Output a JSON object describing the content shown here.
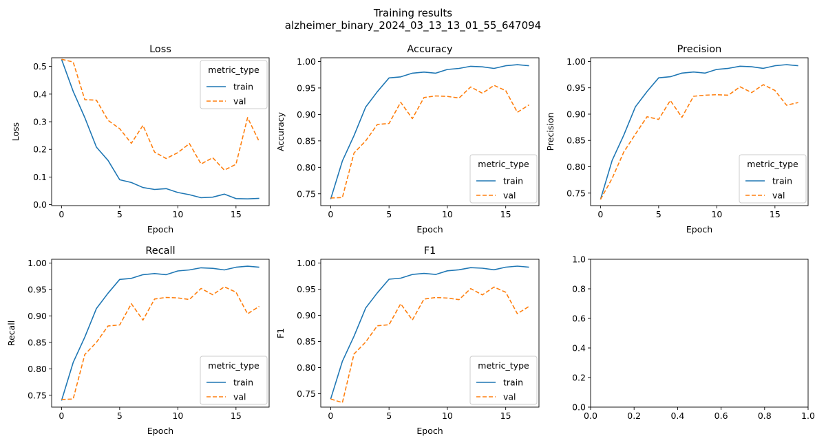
{
  "figure": {
    "title_line1": "Training results",
    "title_line2": "alzheimer_binary_2024_03_13_13_01_55_647094"
  },
  "colors": {
    "train": "#1f77b4",
    "val": "#ff7f0e",
    "axes": "#000000"
  },
  "chart_data": [
    {
      "type": "line",
      "title": "Loss",
      "xlabel": "Epoch",
      "ylabel": "Loss",
      "xlim": [
        -0.85,
        17.85
      ],
      "ylim": [
        -0.0035,
        0.5315
      ],
      "xticks": [
        0,
        5,
        10,
        15
      ],
      "yticks": [
        0.0,
        0.1,
        0.2,
        0.3,
        0.4,
        0.5
      ],
      "ytick_labels": [
        "0.0",
        "0.1",
        "0.2",
        "0.3",
        "0.4",
        "0.5"
      ],
      "legend": {
        "title": "metric_type",
        "placement": "upper right"
      },
      "x": [
        0,
        1,
        2,
        3,
        4,
        5,
        6,
        7,
        8,
        9,
        10,
        11,
        12,
        13,
        14,
        15,
        16,
        17
      ],
      "series": [
        {
          "name": "train",
          "values": [
            0.526,
            0.41,
            0.315,
            0.208,
            0.16,
            0.09,
            0.08,
            0.062,
            0.055,
            0.058,
            0.044,
            0.036,
            0.025,
            0.027,
            0.038,
            0.022,
            0.021,
            0.023
          ]
        },
        {
          "name": "val",
          "values": [
            0.526,
            0.516,
            0.38,
            0.378,
            0.305,
            0.275,
            0.222,
            0.287,
            0.19,
            0.167,
            0.188,
            0.221,
            0.147,
            0.17,
            0.125,
            0.146,
            0.315,
            0.228
          ]
        }
      ]
    },
    {
      "type": "line",
      "title": "Accuracy",
      "xlabel": "Epoch",
      "ylabel": "Accuracy",
      "xlim": [
        -0.85,
        17.85
      ],
      "ylim": [
        0.7276,
        1.0071
      ],
      "xticks": [
        0,
        5,
        10,
        15
      ],
      "yticks": [
        0.75,
        0.8,
        0.85,
        0.9,
        0.95,
        1.0
      ],
      "ytick_labels": [
        "0.75",
        "0.80",
        "0.85",
        "0.90",
        "0.95",
        "1.00"
      ],
      "legend": {
        "title": "metric_type",
        "placement": "lower right"
      },
      "x": [
        0,
        1,
        2,
        3,
        4,
        5,
        6,
        7,
        8,
        9,
        10,
        11,
        12,
        13,
        14,
        15,
        16,
        17
      ],
      "series": [
        {
          "name": "train",
          "values": [
            0.74,
            0.812,
            0.86,
            0.914,
            0.943,
            0.969,
            0.971,
            0.978,
            0.98,
            0.978,
            0.985,
            0.987,
            0.991,
            0.99,
            0.987,
            0.992,
            0.994,
            0.992
          ]
        },
        {
          "name": "val",
          "values": [
            0.742,
            0.743,
            0.827,
            0.85,
            0.881,
            0.883,
            0.923,
            0.892,
            0.932,
            0.935,
            0.934,
            0.931,
            0.952,
            0.94,
            0.955,
            0.945,
            0.904,
            0.918
          ]
        }
      ]
    },
    {
      "type": "line",
      "title": "Precision",
      "xlabel": "Epoch",
      "ylabel": "Precision",
      "xlim": [
        -0.85,
        17.85
      ],
      "ylim": [
        0.7262,
        1.0071
      ],
      "xticks": [
        0,
        5,
        10,
        15
      ],
      "yticks": [
        0.75,
        0.8,
        0.85,
        0.9,
        0.95,
        1.0
      ],
      "ytick_labels": [
        "0.75",
        "0.80",
        "0.85",
        "0.90",
        "0.95",
        "1.00"
      ],
      "legend": {
        "title": "metric_type",
        "placement": "lower right"
      },
      "x": [
        0,
        1,
        2,
        3,
        4,
        5,
        6,
        7,
        8,
        9,
        10,
        11,
        12,
        13,
        14,
        15,
        16,
        17
      ],
      "series": [
        {
          "name": "train",
          "values": [
            0.738,
            0.812,
            0.86,
            0.914,
            0.943,
            0.969,
            0.971,
            0.978,
            0.98,
            0.978,
            0.985,
            0.987,
            0.991,
            0.99,
            0.987,
            0.992,
            0.994,
            0.992
          ]
        },
        {
          "name": "val",
          "values": [
            0.738,
            0.778,
            0.828,
            0.862,
            0.895,
            0.89,
            0.926,
            0.894,
            0.934,
            0.936,
            0.937,
            0.936,
            0.952,
            0.941,
            0.956,
            0.945,
            0.917,
            0.922
          ]
        }
      ]
    },
    {
      "type": "line",
      "title": "Recall",
      "xlabel": "Epoch",
      "ylabel": "Recall",
      "xlim": [
        -0.85,
        17.85
      ],
      "ylim": [
        0.7276,
        1.0071
      ],
      "xticks": [
        0,
        5,
        10,
        15
      ],
      "yticks": [
        0.75,
        0.8,
        0.85,
        0.9,
        0.95,
        1.0
      ],
      "ytick_labels": [
        "0.75",
        "0.80",
        "0.85",
        "0.90",
        "0.95",
        "1.00"
      ],
      "legend": {
        "title": "metric_type",
        "placement": "lower right"
      },
      "x": [
        0,
        1,
        2,
        3,
        4,
        5,
        6,
        7,
        8,
        9,
        10,
        11,
        12,
        13,
        14,
        15,
        16,
        17
      ],
      "series": [
        {
          "name": "train",
          "values": [
            0.74,
            0.812,
            0.86,
            0.914,
            0.943,
            0.969,
            0.971,
            0.978,
            0.98,
            0.978,
            0.985,
            0.987,
            0.991,
            0.99,
            0.987,
            0.992,
            0.994,
            0.992
          ]
        },
        {
          "name": "val",
          "values": [
            0.742,
            0.743,
            0.827,
            0.85,
            0.881,
            0.883,
            0.923,
            0.892,
            0.932,
            0.935,
            0.934,
            0.931,
            0.952,
            0.94,
            0.955,
            0.945,
            0.904,
            0.918
          ]
        }
      ]
    },
    {
      "type": "line",
      "title": "F1",
      "xlabel": "Epoch",
      "ylabel": "F1",
      "xlim": [
        -0.85,
        17.85
      ],
      "ylim": [
        0.7245,
        1.0071
      ],
      "xticks": [
        0,
        5,
        10,
        15
      ],
      "yticks": [
        0.75,
        0.8,
        0.85,
        0.9,
        0.95,
        1.0
      ],
      "ytick_labels": [
        "0.75",
        "0.80",
        "0.85",
        "0.90",
        "0.95",
        "1.00"
      ],
      "legend": {
        "title": "metric_type",
        "placement": "lower right"
      },
      "x": [
        0,
        1,
        2,
        3,
        4,
        5,
        6,
        7,
        8,
        9,
        10,
        11,
        12,
        13,
        14,
        15,
        16,
        17
      ],
      "series": [
        {
          "name": "train",
          "values": [
            0.74,
            0.812,
            0.86,
            0.914,
            0.943,
            0.969,
            0.971,
            0.978,
            0.98,
            0.978,
            0.985,
            0.987,
            0.991,
            0.99,
            0.987,
            0.992,
            0.994,
            0.992
          ]
        },
        {
          "name": "val",
          "values": [
            0.74,
            0.733,
            0.826,
            0.849,
            0.88,
            0.882,
            0.922,
            0.891,
            0.931,
            0.934,
            0.933,
            0.93,
            0.951,
            0.939,
            0.954,
            0.944,
            0.903,
            0.917
          ]
        }
      ]
    },
    {
      "type": "line",
      "title": "",
      "xlabel": "",
      "ylabel": "",
      "xlim": [
        0.0,
        1.0
      ],
      "ylim": [
        0.0,
        1.0
      ],
      "xticks": [
        0.0,
        0.2,
        0.4,
        0.6,
        0.8,
        1.0
      ],
      "xtick_labels": [
        "0.0",
        "0.2",
        "0.4",
        "0.6",
        "0.8",
        "1.0"
      ],
      "yticks": [
        0.0,
        0.2,
        0.4,
        0.6,
        0.8,
        1.0
      ],
      "ytick_labels": [
        "0.0",
        "0.2",
        "0.4",
        "0.6",
        "0.8",
        "1.0"
      ],
      "x": [],
      "series": []
    }
  ]
}
